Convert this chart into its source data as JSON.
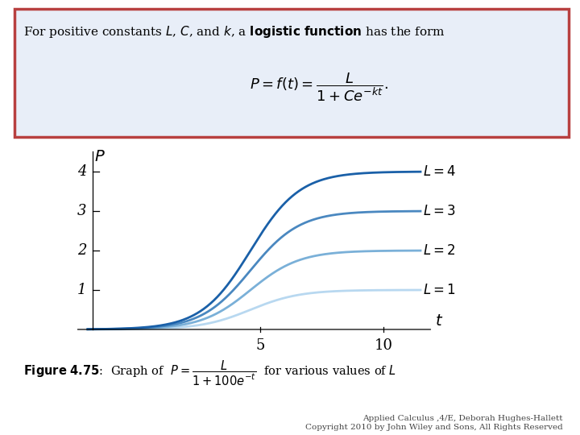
{
  "L_values": [
    1,
    2,
    3,
    4
  ],
  "C": 100,
  "k": 1,
  "t_start": -2,
  "t_end": 11.5,
  "x_ticks": [
    5,
    10
  ],
  "y_ticks": [
    1,
    2,
    3,
    4
  ],
  "colors": [
    "#b8d8f0",
    "#7ab0d8",
    "#4a88c0",
    "#1a60a8"
  ],
  "line_width": 2.0,
  "copyright_line1": "Applied Calculus ,4/E, Deborah Hughes-Hallett",
  "copyright_line2": "Copyright 2010 by John Wiley and Sons, All Rights Reserved",
  "bg_color": "#ffffff",
  "box_bg_color": "#e8eef8",
  "box_border_color": "#b84040",
  "ylim": [
    -0.25,
    4.6
  ],
  "xlim": [
    -2.5,
    13.5
  ],
  "plot_xlim_display": [
    -2,
    11.8
  ],
  "y_axis_x": -1.8,
  "x_axis_end": 12.0
}
